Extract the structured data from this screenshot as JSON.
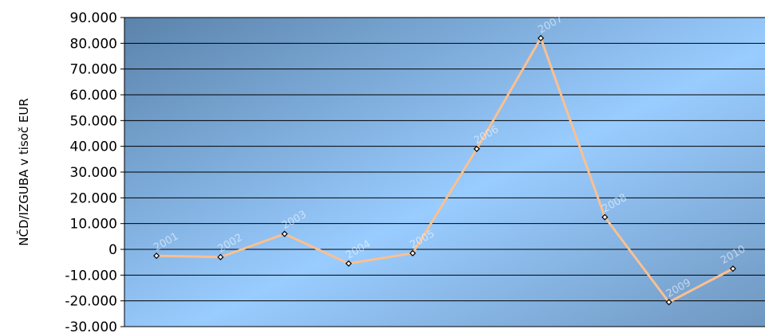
{
  "chart_data": {
    "type": "line",
    "ylabel": "NČD/IZGUBA  v tisoč EUR",
    "ylim": [
      -30000,
      90000
    ],
    "yticks": [
      90000,
      80000,
      70000,
      60000,
      50000,
      40000,
      30000,
      20000,
      10000,
      0,
      -10000,
      -20000,
      -30000
    ],
    "ytick_labels": [
      "90.000",
      "80.000",
      "70.000",
      "60.000",
      "50.000",
      "40.000",
      "30.000",
      "20.000",
      "10.000",
      "0",
      "-10.000",
      "-20.000",
      "-30.000"
    ],
    "grid": true,
    "categories": [
      "2001",
      "2002",
      "2003",
      "2004",
      "2005",
      "2006",
      "2007",
      "2008",
      "2009",
      "2010"
    ],
    "values": [
      -2500,
      -3000,
      6000,
      -5500,
      -1500,
      39000,
      82000,
      12500,
      -20500,
      -7500
    ],
    "colors": {
      "line": "#FAC090",
      "gradient_dark": "#5B83AB",
      "gradient_light": "#99CCFF",
      "grid": "#000000"
    }
  }
}
